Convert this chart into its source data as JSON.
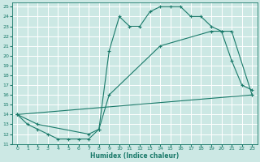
{
  "xlabel": "Humidex (Indice chaleur)",
  "bg_color": "#cce8e4",
  "grid_color": "#b0d8d4",
  "line_color": "#1a7a6a",
  "xlim": [
    -0.5,
    23.5
  ],
  "ylim": [
    11,
    25.4
  ],
  "xticks": [
    0,
    1,
    2,
    3,
    4,
    5,
    6,
    7,
    8,
    9,
    10,
    11,
    12,
    13,
    14,
    15,
    16,
    17,
    18,
    19,
    20,
    21,
    22,
    23
  ],
  "yticks": [
    11,
    12,
    13,
    14,
    15,
    16,
    17,
    18,
    19,
    20,
    21,
    22,
    23,
    24,
    25
  ],
  "line1_x": [
    0,
    1,
    2,
    3,
    4,
    5,
    6,
    7,
    8,
    9,
    10,
    11,
    12,
    13,
    14,
    15,
    16,
    17,
    18,
    19,
    20,
    21,
    22,
    23
  ],
  "line1_y": [
    14,
    13,
    12.5,
    12,
    11.5,
    11.5,
    11.5,
    11.5,
    12.5,
    20.5,
    24,
    23,
    23,
    24.5,
    25,
    25,
    25,
    24,
    24,
    23,
    22.5,
    19.5,
    17,
    16.5
  ],
  "line2_x": [
    0,
    2,
    7,
    8,
    9,
    14,
    19,
    20,
    21,
    23
  ],
  "line2_y": [
    14,
    13,
    12,
    12.5,
    16,
    21,
    22.5,
    22.5,
    22.5,
    16
  ],
  "line3_x": [
    0,
    23
  ],
  "line3_y": [
    14,
    16
  ]
}
